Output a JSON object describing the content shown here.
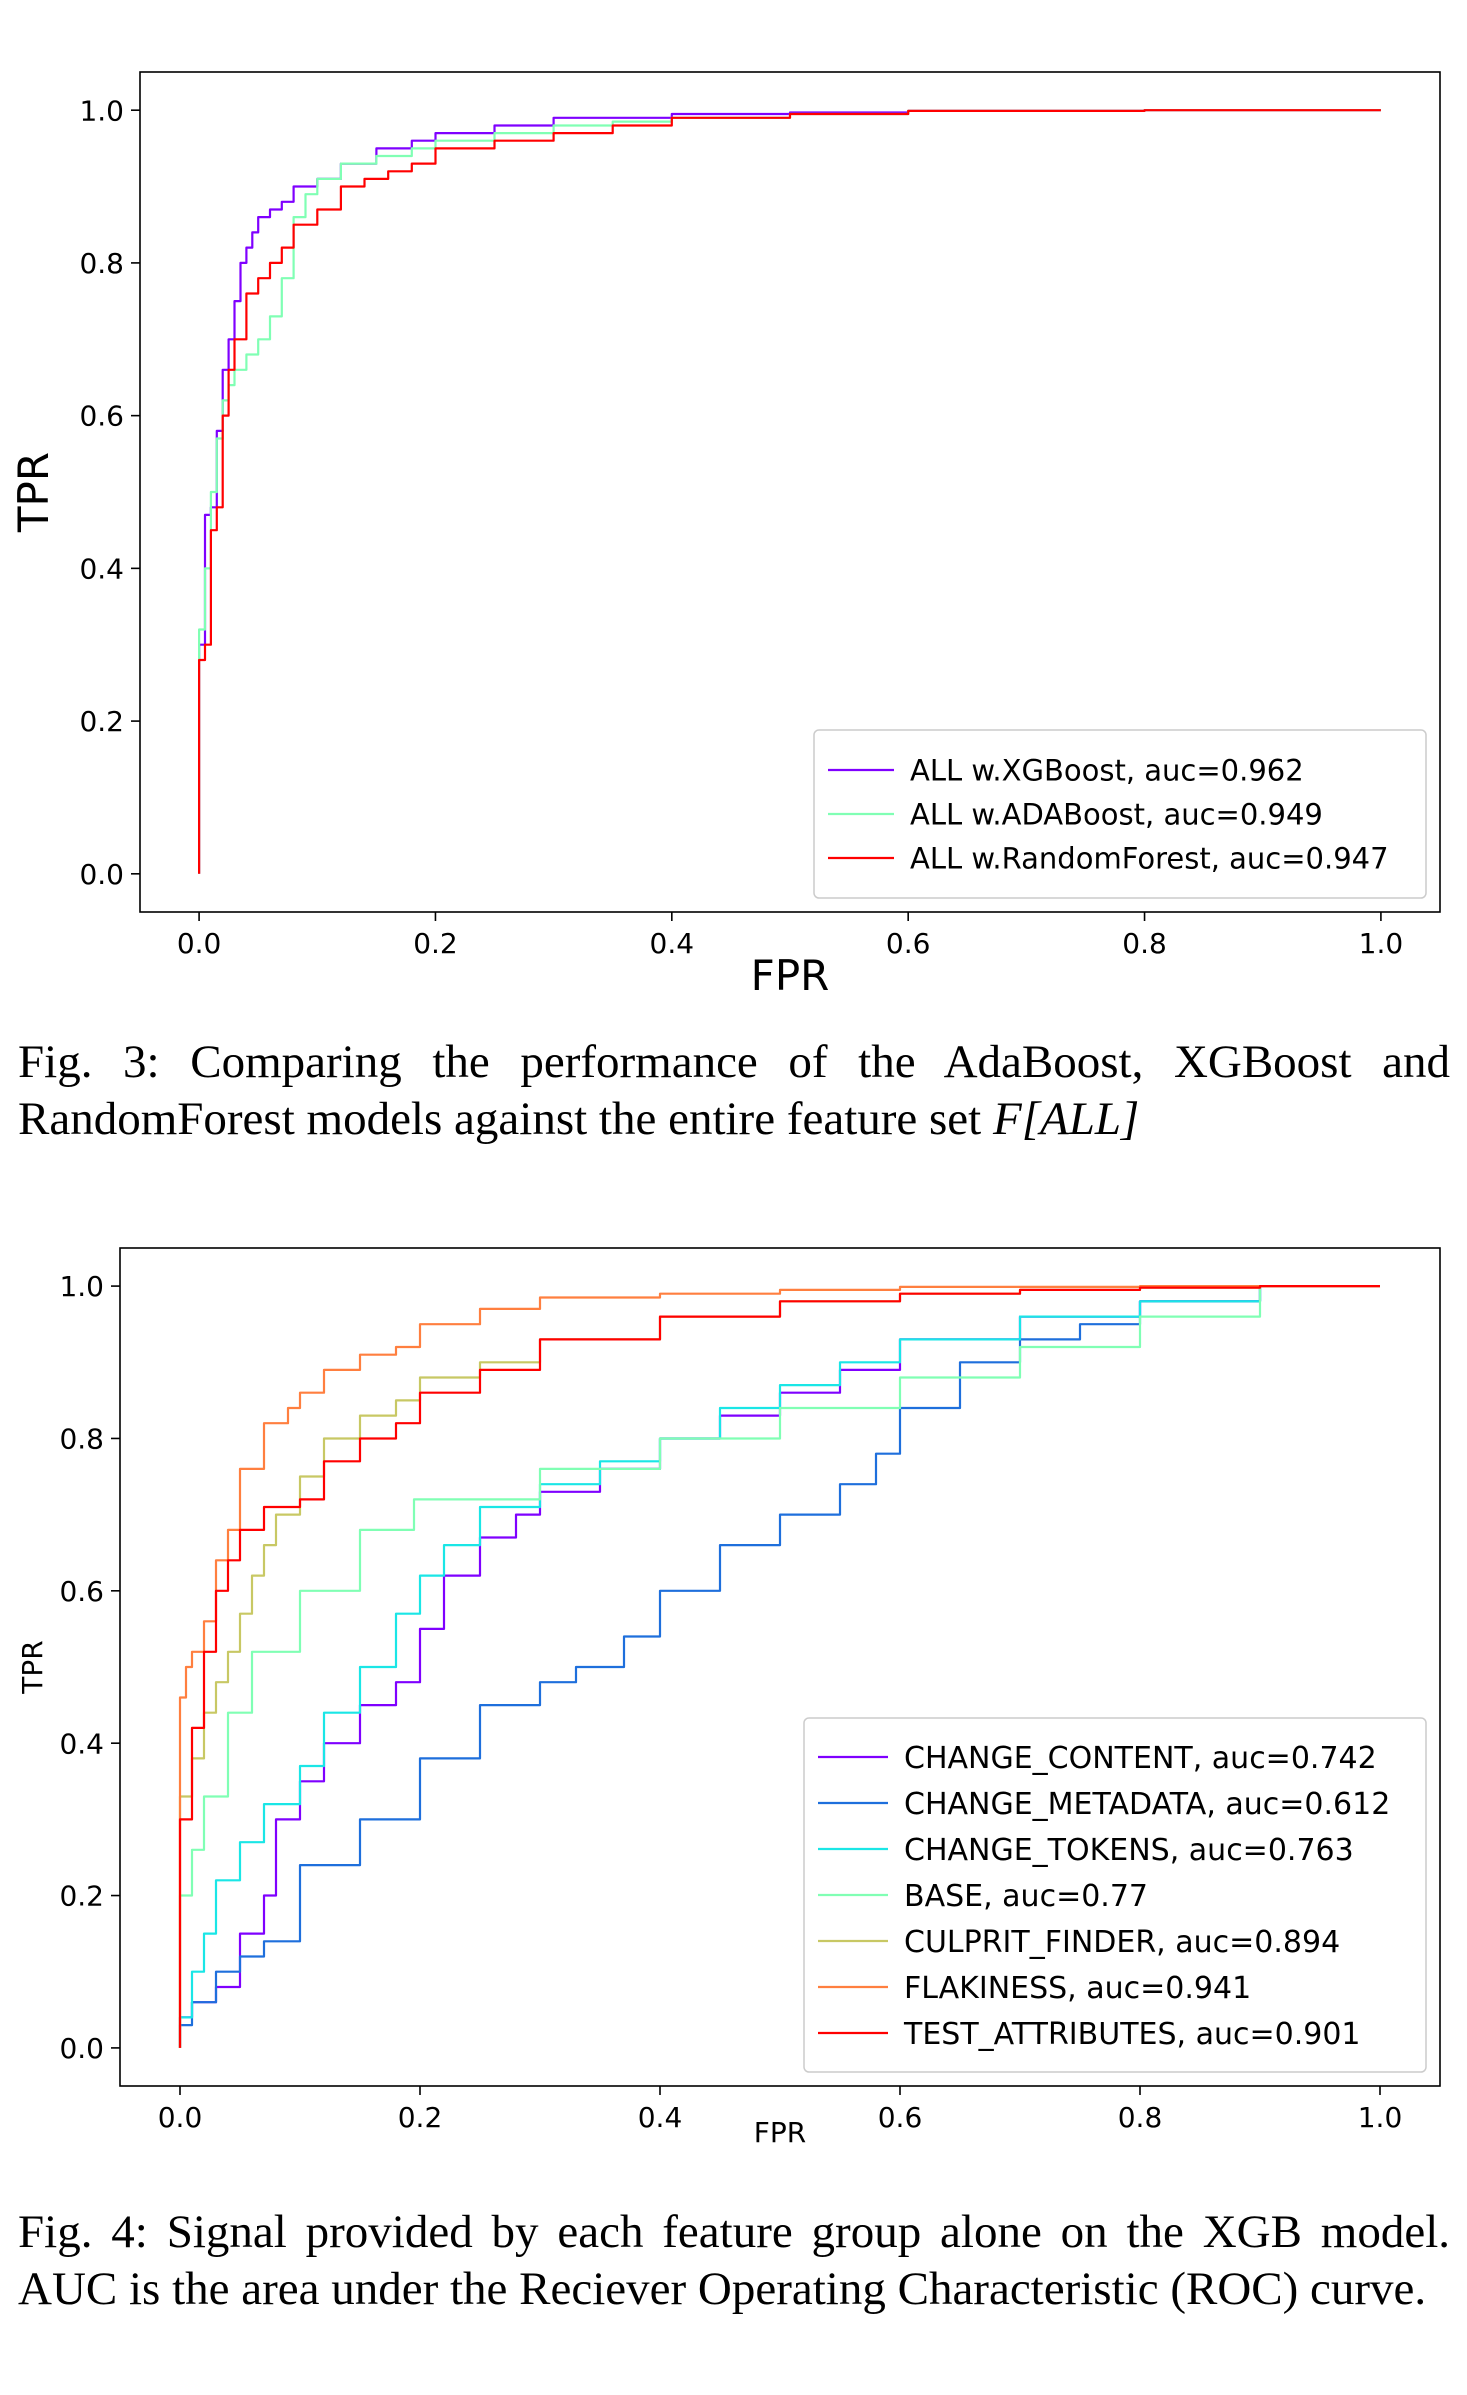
{
  "figures": [
    {
      "caption": {
        "label": "Fig. 3:",
        "text": "Comparing the performance of the AdaBoost, XGBoost and RandomForest models against the entire feature set ",
        "emphasis": "F[ALL]"
      }
    },
    {
      "caption": {
        "label": "Fig. 4:",
        "text": "Signal provided by each feature group alone on the XGB model. AUC is the area under the Reciever Operating Characteristic (ROC) curve.",
        "emphasis": ""
      }
    }
  ],
  "chart_data": [
    {
      "type": "line",
      "xlabel": "FPR",
      "ylabel": "TPR",
      "xlim": [
        -0.05,
        1.05
      ],
      "ylim": [
        -0.05,
        1.05
      ],
      "xticks": [
        "0.0",
        "0.2",
        "0.4",
        "0.6",
        "0.8",
        "1.0"
      ],
      "yticks": [
        "0.0",
        "0.2",
        "0.4",
        "0.6",
        "0.8",
        "1.0"
      ],
      "grid": false,
      "legend": "lower-right",
      "series": [
        {
          "name": "ALL w.XGBoost, auc=0.962",
          "color": "#7f00ff",
          "x": [
            0,
            0,
            0.005,
            0.01,
            0.015,
            0.02,
            0.025,
            0.03,
            0.035,
            0.04,
            0.045,
            0.05,
            0.06,
            0.07,
            0.08,
            0.1,
            0.12,
            0.15,
            0.18,
            0.2,
            0.25,
            0.3,
            0.4,
            0.5,
            0.6,
            0.8,
            1.0
          ],
          "y": [
            0,
            0.2,
            0.3,
            0.47,
            0.48,
            0.58,
            0.66,
            0.7,
            0.75,
            0.8,
            0.82,
            0.84,
            0.86,
            0.87,
            0.88,
            0.9,
            0.91,
            0.93,
            0.95,
            0.96,
            0.97,
            0.98,
            0.99,
            0.995,
            0.997,
            0.999,
            1.0
          ]
        },
        {
          "name": "ALL w.ADABoost, auc=0.949",
          "color": "#80ffb4",
          "x": [
            0,
            0,
            0.005,
            0.01,
            0.015,
            0.02,
            0.025,
            0.03,
            0.04,
            0.05,
            0.06,
            0.07,
            0.08,
            0.09,
            0.1,
            0.12,
            0.15,
            0.18,
            0.2,
            0.25,
            0.3,
            0.35,
            0.4,
            0.5,
            0.6,
            0.8,
            1.0
          ],
          "y": [
            0,
            0.2,
            0.32,
            0.4,
            0.5,
            0.57,
            0.62,
            0.64,
            0.66,
            0.68,
            0.7,
            0.73,
            0.78,
            0.86,
            0.89,
            0.91,
            0.93,
            0.94,
            0.95,
            0.96,
            0.97,
            0.98,
            0.985,
            0.99,
            0.995,
            0.999,
            1.0
          ]
        },
        {
          "name": "ALL w.RandomForest, auc=0.947",
          "color": "#ff0000",
          "x": [
            0,
            0,
            0.005,
            0.01,
            0.015,
            0.02,
            0.025,
            0.03,
            0.04,
            0.05,
            0.06,
            0.07,
            0.08,
            0.1,
            0.12,
            0.14,
            0.16,
            0.18,
            0.2,
            0.25,
            0.3,
            0.35,
            0.4,
            0.5,
            0.6,
            0.8,
            1.0
          ],
          "y": [
            0,
            0.2,
            0.28,
            0.3,
            0.45,
            0.48,
            0.6,
            0.66,
            0.7,
            0.76,
            0.78,
            0.8,
            0.82,
            0.85,
            0.87,
            0.9,
            0.91,
            0.92,
            0.93,
            0.95,
            0.96,
            0.97,
            0.98,
            0.99,
            0.995,
            0.999,
            1.0
          ]
        }
      ]
    },
    {
      "type": "line",
      "xlabel": "FPR",
      "ylabel": "TPR",
      "xlim": [
        -0.05,
        1.05
      ],
      "ylim": [
        -0.05,
        1.05
      ],
      "xticks": [
        "0.0",
        "0.2",
        "0.4",
        "0.6",
        "0.8",
        "1.0"
      ],
      "yticks": [
        "0.0",
        "0.2",
        "0.4",
        "0.6",
        "0.8",
        "1.0"
      ],
      "grid": false,
      "legend": "lower-right",
      "series": [
        {
          "name": "CHANGE_CONTENT, auc=0.742",
          "color": "#7f00ff",
          "x": [
            0,
            0.01,
            0.03,
            0.05,
            0.07,
            0.08,
            0.1,
            0.12,
            0.15,
            0.18,
            0.2,
            0.22,
            0.25,
            0.28,
            0.3,
            0.35,
            0.4,
            0.45,
            0.5,
            0.55,
            0.6,
            0.7,
            0.8,
            0.9,
            1.0
          ],
          "y": [
            0,
            0.04,
            0.06,
            0.08,
            0.15,
            0.2,
            0.3,
            0.35,
            0.4,
            0.45,
            0.48,
            0.55,
            0.62,
            0.67,
            0.7,
            0.73,
            0.76,
            0.8,
            0.83,
            0.86,
            0.89,
            0.93,
            0.96,
            0.98,
            1.0
          ]
        },
        {
          "name": "CHANGE_METADATA, auc=0.612",
          "color": "#1e6fdc",
          "x": [
            0,
            0.01,
            0.03,
            0.05,
            0.07,
            0.1,
            0.15,
            0.2,
            0.25,
            0.3,
            0.33,
            0.37,
            0.4,
            0.45,
            0.5,
            0.55,
            0.58,
            0.6,
            0.65,
            0.7,
            0.75,
            0.8,
            0.9,
            1.0
          ],
          "y": [
            0,
            0.03,
            0.06,
            0.1,
            0.12,
            0.14,
            0.24,
            0.3,
            0.38,
            0.45,
            0.48,
            0.5,
            0.54,
            0.6,
            0.66,
            0.7,
            0.74,
            0.78,
            0.84,
            0.9,
            0.93,
            0.95,
            0.98,
            1.0
          ]
        },
        {
          "name": "CHANGE_TOKENS, auc=0.763",
          "color": "#1ae6e6",
          "x": [
            0,
            0.01,
            0.02,
            0.03,
            0.05,
            0.07,
            0.1,
            0.12,
            0.15,
            0.18,
            0.2,
            0.22,
            0.25,
            0.3,
            0.35,
            0.4,
            0.45,
            0.5,
            0.55,
            0.6,
            0.7,
            0.8,
            0.9,
            1.0
          ],
          "y": [
            0,
            0.04,
            0.1,
            0.15,
            0.22,
            0.27,
            0.32,
            0.37,
            0.44,
            0.5,
            0.57,
            0.62,
            0.66,
            0.71,
            0.74,
            0.77,
            0.8,
            0.84,
            0.87,
            0.9,
            0.93,
            0.96,
            0.98,
            1.0
          ]
        },
        {
          "name": "BASE, auc=0.77",
          "color": "#80ffb4",
          "x": [
            0,
            0,
            0.01,
            0.02,
            0.04,
            0.06,
            0.1,
            0.15,
            0.195,
            0.3,
            0.4,
            0.5,
            0.6,
            0.7,
            0.8,
            0.9,
            1.0
          ],
          "y": [
            0,
            0.15,
            0.2,
            0.26,
            0.33,
            0.44,
            0.52,
            0.6,
            0.68,
            0.72,
            0.76,
            0.8,
            0.84,
            0.88,
            0.92,
            0.96,
            1.0
          ]
        },
        {
          "name": "CULPRIT_FINDER, auc=0.894",
          "color": "#c8c864",
          "x": [
            0,
            0,
            0.01,
            0.02,
            0.03,
            0.04,
            0.05,
            0.06,
            0.07,
            0.08,
            0.1,
            0.12,
            0.15,
            0.18,
            0.2,
            0.25,
            0.3,
            0.4,
            0.5,
            0.6,
            0.7,
            0.8,
            0.9,
            1.0
          ],
          "y": [
            0,
            0.3,
            0.33,
            0.38,
            0.44,
            0.48,
            0.52,
            0.57,
            0.62,
            0.66,
            0.7,
            0.75,
            0.8,
            0.83,
            0.85,
            0.88,
            0.9,
            0.93,
            0.96,
            0.98,
            0.99,
            0.995,
            0.998,
            1.0
          ]
        },
        {
          "name": "FLAKINESS, auc=0.941",
          "color": "#ff7f3f",
          "x": [
            0,
            0,
            0.005,
            0.01,
            0.02,
            0.03,
            0.04,
            0.05,
            0.07,
            0.09,
            0.1,
            0.12,
            0.15,
            0.18,
            0.2,
            0.25,
            0.3,
            0.4,
            0.5,
            0.6,
            0.8,
            1.0
          ],
          "y": [
            0,
            0.44,
            0.46,
            0.5,
            0.52,
            0.56,
            0.64,
            0.68,
            0.76,
            0.82,
            0.84,
            0.86,
            0.89,
            0.91,
            0.92,
            0.95,
            0.97,
            0.985,
            0.99,
            0.995,
            0.999,
            1.0
          ]
        },
        {
          "name": "TEST_ATTRIBUTES, auc=0.901",
          "color": "#ff0000",
          "x": [
            0,
            0,
            0.01,
            0.02,
            0.03,
            0.04,
            0.05,
            0.07,
            0.1,
            0.12,
            0.15,
            0.18,
            0.2,
            0.25,
            0.3,
            0.4,
            0.5,
            0.6,
            0.7,
            0.8,
            0.9,
            1.0
          ],
          "y": [
            0,
            0.24,
            0.3,
            0.42,
            0.52,
            0.6,
            0.64,
            0.68,
            0.71,
            0.72,
            0.77,
            0.8,
            0.82,
            0.86,
            0.89,
            0.93,
            0.96,
            0.98,
            0.99,
            0.995,
            0.998,
            1.0
          ]
        }
      ]
    }
  ]
}
